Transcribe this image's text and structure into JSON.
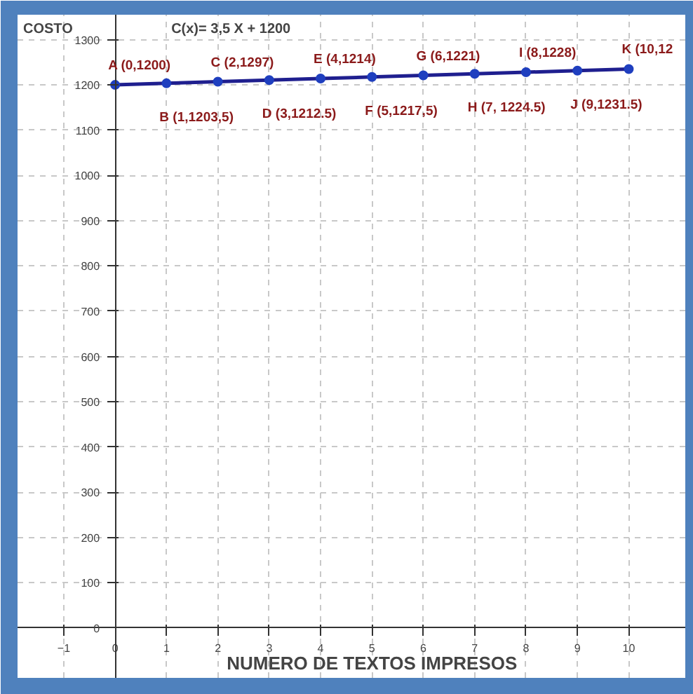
{
  "chart_data": {
    "type": "line",
    "xlabel": "NUMERO DE TEXTOS IMPRESOS",
    "ylabel": "COSTO",
    "x": [
      0,
      1,
      2,
      3,
      4,
      5,
      6,
      7,
      8,
      9,
      10
    ],
    "series": [
      {
        "color": "#1f1f8f",
        "values": [
          1200,
          1203.5,
          1207,
          1210.5,
          1214,
          1217.5,
          1221,
          1224.5,
          1228,
          1231.5,
          1235
        ]
      }
    ],
    "marker": "circle",
    "line_style": "solid",
    "xlim": [
      -1.9,
      11.1
    ],
    "ylim": [
      -110,
      1355
    ],
    "xticks": [
      -1,
      0,
      1,
      2,
      3,
      4,
      5,
      6,
      7,
      8,
      9,
      10
    ],
    "yticks": [
      0,
      100,
      200,
      300,
      400,
      500,
      600,
      700,
      800,
      900,
      1000,
      1100,
      1200,
      1300
    ],
    "grid": true,
    "annotations": [
      "C(x)= 3,5 X + 1200",
      {
        "text": "A (0,1200)",
        "x": 0,
        "y": 1200
      },
      {
        "text": "B (1,1203,5)",
        "x": 1,
        "y": 1203.5
      },
      {
        "text": "C (2,1297)",
        "x": 2,
        "y": 1207
      },
      {
        "text": "D (3,1212.5)",
        "x": 3,
        "y": 1210.5
      },
      {
        "text": "E (4,1214)",
        "x": 4,
        "y": 1214
      },
      {
        "text": "F (5,1217,5)",
        "x": 5,
        "y": 1217.5
      },
      {
        "text": "G (6,1221)",
        "x": 6,
        "y": 1221
      },
      {
        "text": "H (7, 1224.5)",
        "x": 7,
        "y": 1224.5
      },
      {
        "text": "I (8,1228)",
        "x": 8,
        "y": 1228
      },
      {
        "text": "J (9,1231.5)",
        "x": 9,
        "y": 1231.5
      },
      {
        "text": "K (10,12",
        "x": 10,
        "y": 1235
      }
    ]
  }
}
